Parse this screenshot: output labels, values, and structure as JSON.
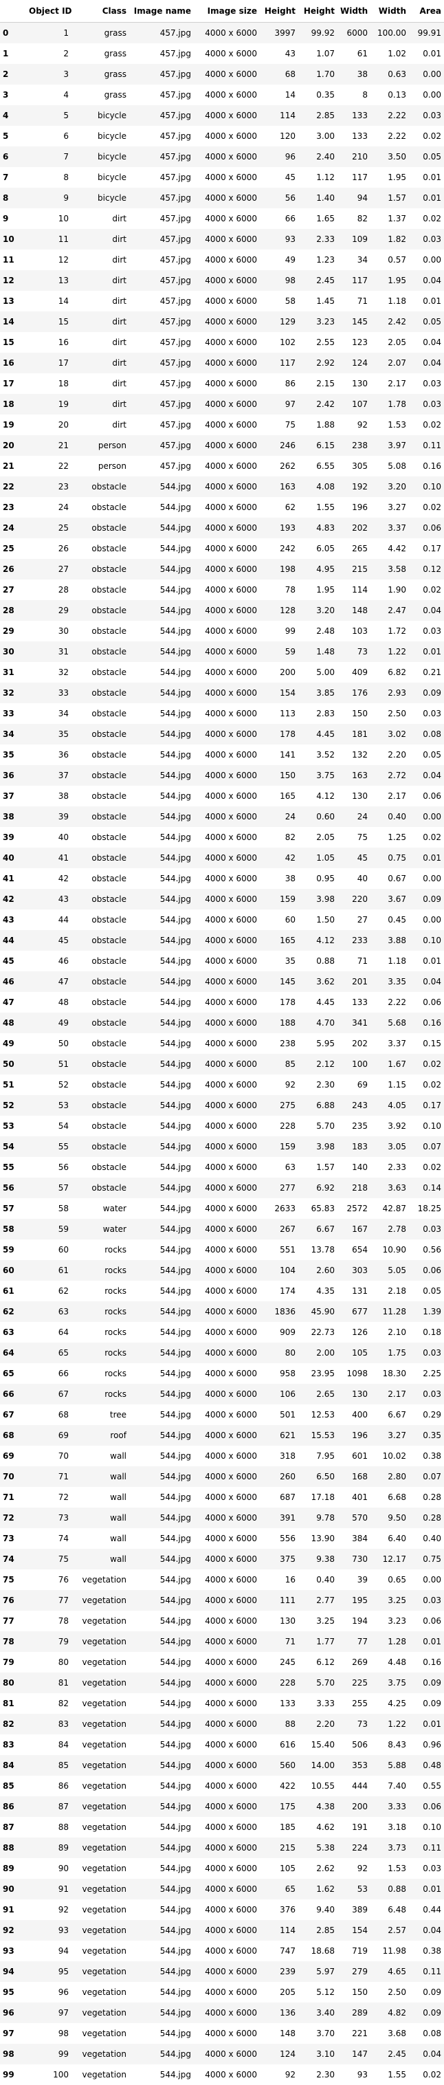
{
  "columns": [
    "",
    "Object ID",
    "Class",
    "Image name",
    "Image size",
    "Height",
    "Height",
    "Width",
    "Width",
    "Area"
  ],
  "rows": [
    [
      "0",
      "1",
      "grass",
      "457.jpg",
      "4000 x 6000",
      "3997",
      "99.92",
      "6000",
      "100.00",
      "99.91"
    ],
    [
      "1",
      "2",
      "grass",
      "457.jpg",
      "4000 x 6000",
      "43",
      "1.07",
      "61",
      "1.02",
      "0.01"
    ],
    [
      "2",
      "3",
      "grass",
      "457.jpg",
      "4000 x 6000",
      "68",
      "1.70",
      "38",
      "0.63",
      "0.00"
    ],
    [
      "3",
      "4",
      "grass",
      "457.jpg",
      "4000 x 6000",
      "14",
      "0.35",
      "8",
      "0.13",
      "0.00"
    ],
    [
      "4",
      "5",
      "bicycle",
      "457.jpg",
      "4000 x 6000",
      "114",
      "2.85",
      "133",
      "2.22",
      "0.03"
    ],
    [
      "5",
      "6",
      "bicycle",
      "457.jpg",
      "4000 x 6000",
      "120",
      "3.00",
      "133",
      "2.22",
      "0.02"
    ],
    [
      "6",
      "7",
      "bicycle",
      "457.jpg",
      "4000 x 6000",
      "96",
      "2.40",
      "210",
      "3.50",
      "0.05"
    ],
    [
      "7",
      "8",
      "bicycle",
      "457.jpg",
      "4000 x 6000",
      "45",
      "1.12",
      "117",
      "1.95",
      "0.01"
    ],
    [
      "8",
      "9",
      "bicycle",
      "457.jpg",
      "4000 x 6000",
      "56",
      "1.40",
      "94",
      "1.57",
      "0.01"
    ],
    [
      "9",
      "10",
      "dirt",
      "457.jpg",
      "4000 x 6000",
      "66",
      "1.65",
      "82",
      "1.37",
      "0.02"
    ],
    [
      "10",
      "11",
      "dirt",
      "457.jpg",
      "4000 x 6000",
      "93",
      "2.33",
      "109",
      "1.82",
      "0.03"
    ],
    [
      "11",
      "12",
      "dirt",
      "457.jpg",
      "4000 x 6000",
      "49",
      "1.23",
      "34",
      "0.57",
      "0.00"
    ],
    [
      "12",
      "13",
      "dirt",
      "457.jpg",
      "4000 x 6000",
      "98",
      "2.45",
      "117",
      "1.95",
      "0.04"
    ],
    [
      "13",
      "14",
      "dirt",
      "457.jpg",
      "4000 x 6000",
      "58",
      "1.45",
      "71",
      "1.18",
      "0.01"
    ],
    [
      "14",
      "15",
      "dirt",
      "457.jpg",
      "4000 x 6000",
      "129",
      "3.23",
      "145",
      "2.42",
      "0.05"
    ],
    [
      "15",
      "16",
      "dirt",
      "457.jpg",
      "4000 x 6000",
      "102",
      "2.55",
      "123",
      "2.05",
      "0.04"
    ],
    [
      "16",
      "17",
      "dirt",
      "457.jpg",
      "4000 x 6000",
      "117",
      "2.92",
      "124",
      "2.07",
      "0.04"
    ],
    [
      "17",
      "18",
      "dirt",
      "457.jpg",
      "4000 x 6000",
      "86",
      "2.15",
      "130",
      "2.17",
      "0.03"
    ],
    [
      "18",
      "19",
      "dirt",
      "457.jpg",
      "4000 x 6000",
      "97",
      "2.42",
      "107",
      "1.78",
      "0.03"
    ],
    [
      "19",
      "20",
      "dirt",
      "457.jpg",
      "4000 x 6000",
      "75",
      "1.88",
      "92",
      "1.53",
      "0.02"
    ],
    [
      "20",
      "21",
      "person",
      "457.jpg",
      "4000 x 6000",
      "246",
      "6.15",
      "238",
      "3.97",
      "0.11"
    ],
    [
      "21",
      "22",
      "person",
      "457.jpg",
      "4000 x 6000",
      "262",
      "6.55",
      "305",
      "5.08",
      "0.16"
    ],
    [
      "22",
      "23",
      "obstacle",
      "544.jpg",
      "4000 x 6000",
      "163",
      "4.08",
      "192",
      "3.20",
      "0.10"
    ],
    [
      "23",
      "24",
      "obstacle",
      "544.jpg",
      "4000 x 6000",
      "62",
      "1.55",
      "196",
      "3.27",
      "0.02"
    ],
    [
      "24",
      "25",
      "obstacle",
      "544.jpg",
      "4000 x 6000",
      "193",
      "4.83",
      "202",
      "3.37",
      "0.06"
    ],
    [
      "25",
      "26",
      "obstacle",
      "544.jpg",
      "4000 x 6000",
      "242",
      "6.05",
      "265",
      "4.42",
      "0.17"
    ],
    [
      "26",
      "27",
      "obstacle",
      "544.jpg",
      "4000 x 6000",
      "198",
      "4.95",
      "215",
      "3.58",
      "0.12"
    ],
    [
      "27",
      "28",
      "obstacle",
      "544.jpg",
      "4000 x 6000",
      "78",
      "1.95",
      "114",
      "1.90",
      "0.02"
    ],
    [
      "28",
      "29",
      "obstacle",
      "544.jpg",
      "4000 x 6000",
      "128",
      "3.20",
      "148",
      "2.47",
      "0.04"
    ],
    [
      "29",
      "30",
      "obstacle",
      "544.jpg",
      "4000 x 6000",
      "99",
      "2.48",
      "103",
      "1.72",
      "0.03"
    ],
    [
      "30",
      "31",
      "obstacle",
      "544.jpg",
      "4000 x 6000",
      "59",
      "1.48",
      "73",
      "1.22",
      "0.01"
    ],
    [
      "31",
      "32",
      "obstacle",
      "544.jpg",
      "4000 x 6000",
      "200",
      "5.00",
      "409",
      "6.82",
      "0.21"
    ],
    [
      "32",
      "33",
      "obstacle",
      "544.jpg",
      "4000 x 6000",
      "154",
      "3.85",
      "176",
      "2.93",
      "0.09"
    ],
    [
      "33",
      "34",
      "obstacle",
      "544.jpg",
      "4000 x 6000",
      "113",
      "2.83",
      "150",
      "2.50",
      "0.03"
    ],
    [
      "34",
      "35",
      "obstacle",
      "544.jpg",
      "4000 x 6000",
      "178",
      "4.45",
      "181",
      "3.02",
      "0.08"
    ],
    [
      "35",
      "36",
      "obstacle",
      "544.jpg",
      "4000 x 6000",
      "141",
      "3.52",
      "132",
      "2.20",
      "0.05"
    ],
    [
      "36",
      "37",
      "obstacle",
      "544.jpg",
      "4000 x 6000",
      "150",
      "3.75",
      "163",
      "2.72",
      "0.04"
    ],
    [
      "37",
      "38",
      "obstacle",
      "544.jpg",
      "4000 x 6000",
      "165",
      "4.12",
      "130",
      "2.17",
      "0.06"
    ],
    [
      "38",
      "39",
      "obstacle",
      "544.jpg",
      "4000 x 6000",
      "24",
      "0.60",
      "24",
      "0.40",
      "0.00"
    ],
    [
      "39",
      "40",
      "obstacle",
      "544.jpg",
      "4000 x 6000",
      "82",
      "2.05",
      "75",
      "1.25",
      "0.02"
    ],
    [
      "40",
      "41",
      "obstacle",
      "544.jpg",
      "4000 x 6000",
      "42",
      "1.05",
      "45",
      "0.75",
      "0.01"
    ],
    [
      "41",
      "42",
      "obstacle",
      "544.jpg",
      "4000 x 6000",
      "38",
      "0.95",
      "40",
      "0.67",
      "0.00"
    ],
    [
      "42",
      "43",
      "obstacle",
      "544.jpg",
      "4000 x 6000",
      "159",
      "3.98",
      "220",
      "3.67",
      "0.09"
    ],
    [
      "43",
      "44",
      "obstacle",
      "544.jpg",
      "4000 x 6000",
      "60",
      "1.50",
      "27",
      "0.45",
      "0.00"
    ],
    [
      "44",
      "45",
      "obstacle",
      "544.jpg",
      "4000 x 6000",
      "165",
      "4.12",
      "233",
      "3.88",
      "0.10"
    ],
    [
      "45",
      "46",
      "obstacle",
      "544.jpg",
      "4000 x 6000",
      "35",
      "0.88",
      "71",
      "1.18",
      "0.01"
    ],
    [
      "46",
      "47",
      "obstacle",
      "544.jpg",
      "4000 x 6000",
      "145",
      "3.62",
      "201",
      "3.35",
      "0.04"
    ],
    [
      "47",
      "48",
      "obstacle",
      "544.jpg",
      "4000 x 6000",
      "178",
      "4.45",
      "133",
      "2.22",
      "0.06"
    ],
    [
      "48",
      "49",
      "obstacle",
      "544.jpg",
      "4000 x 6000",
      "188",
      "4.70",
      "341",
      "5.68",
      "0.16"
    ],
    [
      "49",
      "50",
      "obstacle",
      "544.jpg",
      "4000 x 6000",
      "238",
      "5.95",
      "202",
      "3.37",
      "0.15"
    ],
    [
      "50",
      "51",
      "obstacle",
      "544.jpg",
      "4000 x 6000",
      "85",
      "2.12",
      "100",
      "1.67",
      "0.02"
    ],
    [
      "51",
      "52",
      "obstacle",
      "544.jpg",
      "4000 x 6000",
      "92",
      "2.30",
      "69",
      "1.15",
      "0.02"
    ],
    [
      "52",
      "53",
      "obstacle",
      "544.jpg",
      "4000 x 6000",
      "275",
      "6.88",
      "243",
      "4.05",
      "0.17"
    ],
    [
      "53",
      "54",
      "obstacle",
      "544.jpg",
      "4000 x 6000",
      "228",
      "5.70",
      "235",
      "3.92",
      "0.10"
    ],
    [
      "54",
      "55",
      "obstacle",
      "544.jpg",
      "4000 x 6000",
      "159",
      "3.98",
      "183",
      "3.05",
      "0.07"
    ],
    [
      "55",
      "56",
      "obstacle",
      "544.jpg",
      "4000 x 6000",
      "63",
      "1.57",
      "140",
      "2.33",
      "0.02"
    ],
    [
      "56",
      "57",
      "obstacle",
      "544.jpg",
      "4000 x 6000",
      "277",
      "6.92",
      "218",
      "3.63",
      "0.14"
    ],
    [
      "57",
      "58",
      "water",
      "544.jpg",
      "4000 x 6000",
      "2633",
      "65.83",
      "2572",
      "42.87",
      "18.25"
    ],
    [
      "58",
      "59",
      "water",
      "544.jpg",
      "4000 x 6000",
      "267",
      "6.67",
      "167",
      "2.78",
      "0.03"
    ],
    [
      "59",
      "60",
      "rocks",
      "544.jpg",
      "4000 x 6000",
      "551",
      "13.78",
      "654",
      "10.90",
      "0.56"
    ],
    [
      "60",
      "61",
      "rocks",
      "544.jpg",
      "4000 x 6000",
      "104",
      "2.60",
      "303",
      "5.05",
      "0.06"
    ],
    [
      "61",
      "62",
      "rocks",
      "544.jpg",
      "4000 x 6000",
      "174",
      "4.35",
      "131",
      "2.18",
      "0.05"
    ],
    [
      "62",
      "63",
      "rocks",
      "544.jpg",
      "4000 x 6000",
      "1836",
      "45.90",
      "677",
      "11.28",
      "1.39"
    ],
    [
      "63",
      "64",
      "rocks",
      "544.jpg",
      "4000 x 6000",
      "909",
      "22.73",
      "126",
      "2.10",
      "0.18"
    ],
    [
      "64",
      "65",
      "rocks",
      "544.jpg",
      "4000 x 6000",
      "80",
      "2.00",
      "105",
      "1.75",
      "0.03"
    ],
    [
      "65",
      "66",
      "rocks",
      "544.jpg",
      "4000 x 6000",
      "958",
      "23.95",
      "1098",
      "18.30",
      "2.25"
    ],
    [
      "66",
      "67",
      "rocks",
      "544.jpg",
      "4000 x 6000",
      "106",
      "2.65",
      "130",
      "2.17",
      "0.03"
    ],
    [
      "67",
      "68",
      "tree",
      "544.jpg",
      "4000 x 6000",
      "501",
      "12.53",
      "400",
      "6.67",
      "0.29"
    ],
    [
      "68",
      "69",
      "roof",
      "544.jpg",
      "4000 x 6000",
      "621",
      "15.53",
      "196",
      "3.27",
      "0.35"
    ],
    [
      "69",
      "70",
      "wall",
      "544.jpg",
      "4000 x 6000",
      "318",
      "7.95",
      "601",
      "10.02",
      "0.38"
    ],
    [
      "70",
      "71",
      "wall",
      "544.jpg",
      "4000 x 6000",
      "260",
      "6.50",
      "168",
      "2.80",
      "0.07"
    ],
    [
      "71",
      "72",
      "wall",
      "544.jpg",
      "4000 x 6000",
      "687",
      "17.18",
      "401",
      "6.68",
      "0.28"
    ],
    [
      "72",
      "73",
      "wall",
      "544.jpg",
      "4000 x 6000",
      "391",
      "9.78",
      "570",
      "9.50",
      "0.28"
    ],
    [
      "73",
      "74",
      "wall",
      "544.jpg",
      "4000 x 6000",
      "556",
      "13.90",
      "384",
      "6.40",
      "0.40"
    ],
    [
      "74",
      "75",
      "wall",
      "544.jpg",
      "4000 x 6000",
      "375",
      "9.38",
      "730",
      "12.17",
      "0.75"
    ],
    [
      "75",
      "76",
      "vegetation",
      "544.jpg",
      "4000 x 6000",
      "16",
      "0.40",
      "39",
      "0.65",
      "0.00"
    ],
    [
      "76",
      "77",
      "vegetation",
      "544.jpg",
      "4000 x 6000",
      "111",
      "2.77",
      "195",
      "3.25",
      "0.03"
    ],
    [
      "77",
      "78",
      "vegetation",
      "544.jpg",
      "4000 x 6000",
      "130",
      "3.25",
      "194",
      "3.23",
      "0.06"
    ],
    [
      "78",
      "79",
      "vegetation",
      "544.jpg",
      "4000 x 6000",
      "71",
      "1.77",
      "77",
      "1.28",
      "0.01"
    ],
    [
      "79",
      "80",
      "vegetation",
      "544.jpg",
      "4000 x 6000",
      "245",
      "6.12",
      "269",
      "4.48",
      "0.16"
    ],
    [
      "80",
      "81",
      "vegetation",
      "544.jpg",
      "4000 x 6000",
      "228",
      "5.70",
      "225",
      "3.75",
      "0.09"
    ],
    [
      "81",
      "82",
      "vegetation",
      "544.jpg",
      "4000 x 6000",
      "133",
      "3.33",
      "255",
      "4.25",
      "0.09"
    ],
    [
      "82",
      "83",
      "vegetation",
      "544.jpg",
      "4000 x 6000",
      "88",
      "2.20",
      "73",
      "1.22",
      "0.01"
    ],
    [
      "83",
      "84",
      "vegetation",
      "544.jpg",
      "4000 x 6000",
      "616",
      "15.40",
      "506",
      "8.43",
      "0.96"
    ],
    [
      "84",
      "85",
      "vegetation",
      "544.jpg",
      "4000 x 6000",
      "560",
      "14.00",
      "353",
      "5.88",
      "0.48"
    ],
    [
      "85",
      "86",
      "vegetation",
      "544.jpg",
      "4000 x 6000",
      "422",
      "10.55",
      "444",
      "7.40",
      "0.55"
    ],
    [
      "86",
      "87",
      "vegetation",
      "544.jpg",
      "4000 x 6000",
      "175",
      "4.38",
      "200",
      "3.33",
      "0.06"
    ],
    [
      "87",
      "88",
      "vegetation",
      "544.jpg",
      "4000 x 6000",
      "185",
      "4.62",
      "191",
      "3.18",
      "0.10"
    ],
    [
      "88",
      "89",
      "vegetation",
      "544.jpg",
      "4000 x 6000",
      "215",
      "5.38",
      "224",
      "3.73",
      "0.11"
    ],
    [
      "89",
      "90",
      "vegetation",
      "544.jpg",
      "4000 x 6000",
      "105",
      "2.62",
      "92",
      "1.53",
      "0.03"
    ],
    [
      "90",
      "91",
      "vegetation",
      "544.jpg",
      "4000 x 6000",
      "65",
      "1.62",
      "53",
      "0.88",
      "0.01"
    ],
    [
      "91",
      "92",
      "vegetation",
      "544.jpg",
      "4000 x 6000",
      "376",
      "9.40",
      "389",
      "6.48",
      "0.44"
    ],
    [
      "92",
      "93",
      "vegetation",
      "544.jpg",
      "4000 x 6000",
      "114",
      "2.85",
      "154",
      "2.57",
      "0.04"
    ],
    [
      "93",
      "94",
      "vegetation",
      "544.jpg",
      "4000 x 6000",
      "747",
      "18.68",
      "719",
      "11.98",
      "0.38"
    ],
    [
      "94",
      "95",
      "vegetation",
      "544.jpg",
      "4000 x 6000",
      "239",
      "5.97",
      "279",
      "4.65",
      "0.11"
    ],
    [
      "95",
      "96",
      "vegetation",
      "544.jpg",
      "4000 x 6000",
      "205",
      "5.12",
      "150",
      "2.50",
      "0.09"
    ],
    [
      "96",
      "97",
      "vegetation",
      "544.jpg",
      "4000 x 6000",
      "136",
      "3.40",
      "289",
      "4.82",
      "0.09"
    ],
    [
      "97",
      "98",
      "vegetation",
      "544.jpg",
      "4000 x 6000",
      "148",
      "3.70",
      "221",
      "3.68",
      "0.08"
    ],
    [
      "98",
      "99",
      "vegetation",
      "544.jpg",
      "4000 x 6000",
      "124",
      "3.10",
      "147",
      "2.45",
      "0.04"
    ],
    [
      "99",
      "100",
      "vegetation",
      "544.jpg",
      "4000 x 6000",
      "92",
      "2.30",
      "93",
      "1.55",
      "0.02"
    ]
  ]
}
